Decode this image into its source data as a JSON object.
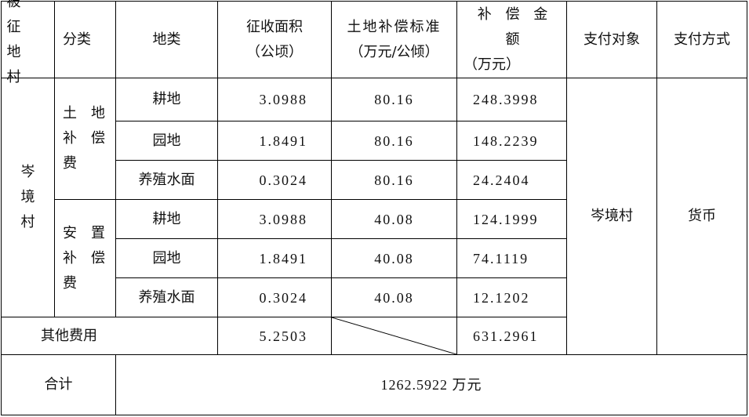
{
  "header": {
    "village": "被 征 地 村",
    "category": "分类",
    "land_type": "地类",
    "area": "征收面积",
    "area_unit": "（公顷）",
    "standard": "土地补偿标准",
    "standard_unit": "（万元/公倾）",
    "amount": "补 偿 金 额",
    "amount_unit": "（万元）",
    "payee": "支付对象",
    "method": "支付方式"
  },
  "village": "岑境村",
  "groups": [
    {
      "label_line1": "土　地",
      "label_line2": "补　偿",
      "label_line3": "费",
      "rows": [
        {
          "type": "耕地",
          "area": "3.0988",
          "standard": "80.16",
          "amount": "248.3998"
        },
        {
          "type": "园地",
          "area": "1.8491",
          "standard": "80.16",
          "amount": "148.2239"
        },
        {
          "type": "养殖水面",
          "area": "0.3024",
          "standard": "80.16",
          "amount": "24.2404"
        }
      ]
    },
    {
      "label_line1": "安　置",
      "label_line2": "补　偿",
      "label_line3": "费",
      "rows": [
        {
          "type": "耕地",
          "area": "3.0988",
          "standard": "40.08",
          "amount": "124.1999"
        },
        {
          "type": "园地",
          "area": "1.8491",
          "standard": "40.08",
          "amount": "74.1119"
        },
        {
          "type": "养殖水面",
          "area": "0.3024",
          "standard": "40.08",
          "amount": "12.1202"
        }
      ]
    }
  ],
  "other": {
    "label": "其他费用",
    "area": "5.2503",
    "amount": "631.2961"
  },
  "payee": "岑境村",
  "method": "货币",
  "total": {
    "label": "合计",
    "value": "1262.5922 万元"
  }
}
